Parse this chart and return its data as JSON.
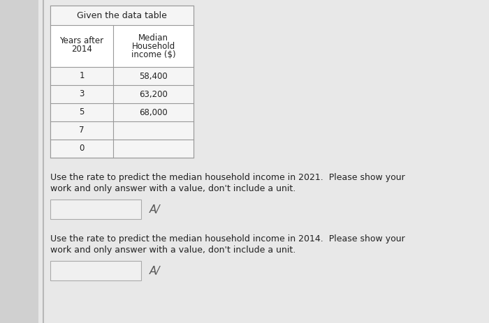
{
  "title": "Given the data table",
  "col1_header_line1": "Years after",
  "col1_header_line2": "2014",
  "col2_header_line1": "Median",
  "col2_header_line2": "Household",
  "col2_header_line3": "income ($)",
  "years": [
    "1",
    "3",
    "5",
    "7",
    "0"
  ],
  "incomes": [
    "58,400",
    "63,200",
    "68,000",
    "",
    ""
  ],
  "question1": "Use the rate to predict the median household income in 2021.  Please show your",
  "question1b": "work and only answer with a value, don't include a unit.",
  "question2": "Use the rate to predict the median household income in 2014.  Please show your",
  "question2b": "work and only answer with a value, don't include a unit.",
  "bg_color": "#d8d8d8",
  "page_color": "#e8e8e8",
  "table_bg": "#ffffff",
  "row_alt_color": "#efefef",
  "border_color": "#999999",
  "text_color": "#222222",
  "input_bg": "#f0f0f0",
  "input_border": "#bbbbbb",
  "sidebar_color": "#c0c0c0",
  "font_size_title": 9,
  "font_size_body": 8.5,
  "font_size_question": 9
}
